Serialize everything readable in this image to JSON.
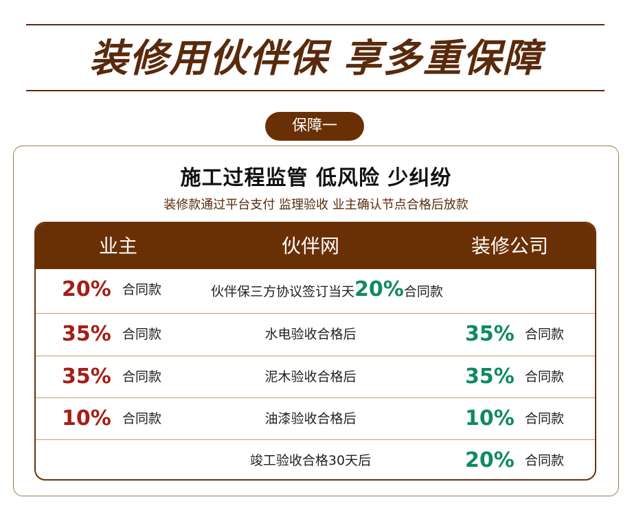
{
  "banner": {
    "headline": "装修用伙伴保 享多重保障"
  },
  "section": {
    "pill_label": "保障一",
    "title": "施工过程监管 低风险 少纠纷",
    "subtitle": "装修款通过平台支付 监理验收 业主确认节点合格后放款"
  },
  "table": {
    "headers": [
      "业主",
      "伙伴网",
      "装修公司"
    ],
    "rows": [
      {
        "owner_pct": "20%",
        "owner_unit": "合同款",
        "milestone_prefix": "伙伴保三方协议签订当天",
        "milestone_pct": "20%",
        "milestone_suffix": "合同款"
      },
      {
        "owner_pct": "35%",
        "owner_unit": "合同款",
        "milestone": "水电验收合格后",
        "company_pct": "35%",
        "company_unit": "合同款"
      },
      {
        "owner_pct": "35%",
        "owner_unit": "合同款",
        "milestone": "泥木验收合格后",
        "company_pct": "35%",
        "company_unit": "合同款"
      },
      {
        "owner_pct": "10%",
        "owner_unit": "合同款",
        "milestone": "油漆验收合格后",
        "company_pct": "10%",
        "company_unit": "合同款"
      },
      {
        "milestone": "竣工验收合格30天后",
        "company_pct": "20%",
        "company_unit": "合同款"
      }
    ]
  },
  "colors": {
    "brown": "#6a3005",
    "red": "#a61d17",
    "green": "#0f8a5f"
  }
}
